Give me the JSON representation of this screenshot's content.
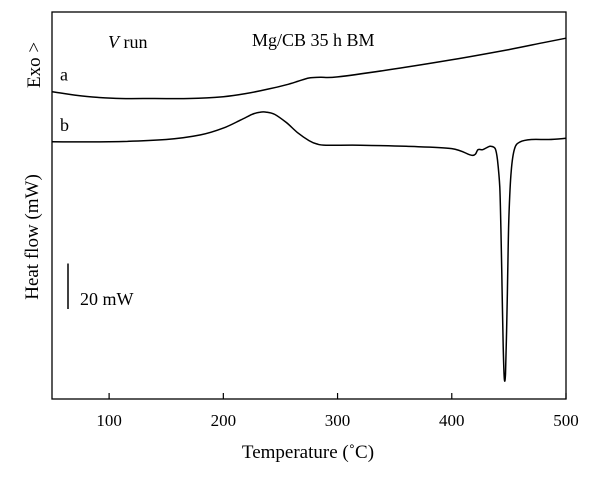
{
  "chart_data": {
    "type": "line",
    "title": "Mg/CB 35 h BM",
    "run_label_italic": "V",
    "run_label_rest": " run",
    "xlabel": "Temperature (˚C)",
    "ylabel": "Heat flow (mW)",
    "exo_label": "Exo >",
    "scale_bar_label": "20 mW",
    "scale_bar_value_mW": 20,
    "xlim": [
      50,
      500
    ],
    "xticks": [
      100,
      200,
      300,
      400,
      500
    ],
    "y_units": "mW (relative, curves offset)",
    "ylim": [
      -135,
      35
    ],
    "grid": false,
    "series": [
      {
        "name": "a",
        "x": [
          50,
          70,
          90,
          110,
          140,
          170,
          200,
          220,
          240,
          255,
          265,
          275,
          285,
          300,
          350,
          400,
          450,
          480,
          500
        ],
        "y": [
          0,
          -1.5,
          -2.5,
          -3,
          -3,
          -3,
          -2.2,
          -0.8,
          1.2,
          3,
          4.5,
          6,
          6.3,
          6.5,
          10,
          14,
          18.5,
          21.5,
          23.5
        ]
      },
      {
        "name": "b",
        "x": [
          50,
          100,
          150,
          180,
          200,
          215,
          225,
          232,
          238,
          245,
          255,
          265,
          275,
          282,
          290,
          320,
          360,
          400,
          418,
          423,
          427,
          431,
          434,
          438,
          440,
          442,
          443,
          444,
          445,
          446,
          447,
          448,
          449,
          450,
          452,
          455,
          460,
          470,
          485,
          500
        ],
        "y": [
          -22,
          -22,
          -21,
          -19,
          -16,
          -12.5,
          -10,
          -9,
          -9,
          -10,
          -13.5,
          -18,
          -21.5,
          -23,
          -23.5,
          -23.5,
          -24,
          -25,
          -28,
          -25.5,
          -25.5,
          -24.5,
          -24,
          -25,
          -30,
          -42,
          -60,
          -85,
          -112,
          -126,
          -124,
          -105,
          -80,
          -55,
          -35,
          -25,
          -22,
          -21,
          -21,
          -20.5
        ]
      }
    ]
  }
}
